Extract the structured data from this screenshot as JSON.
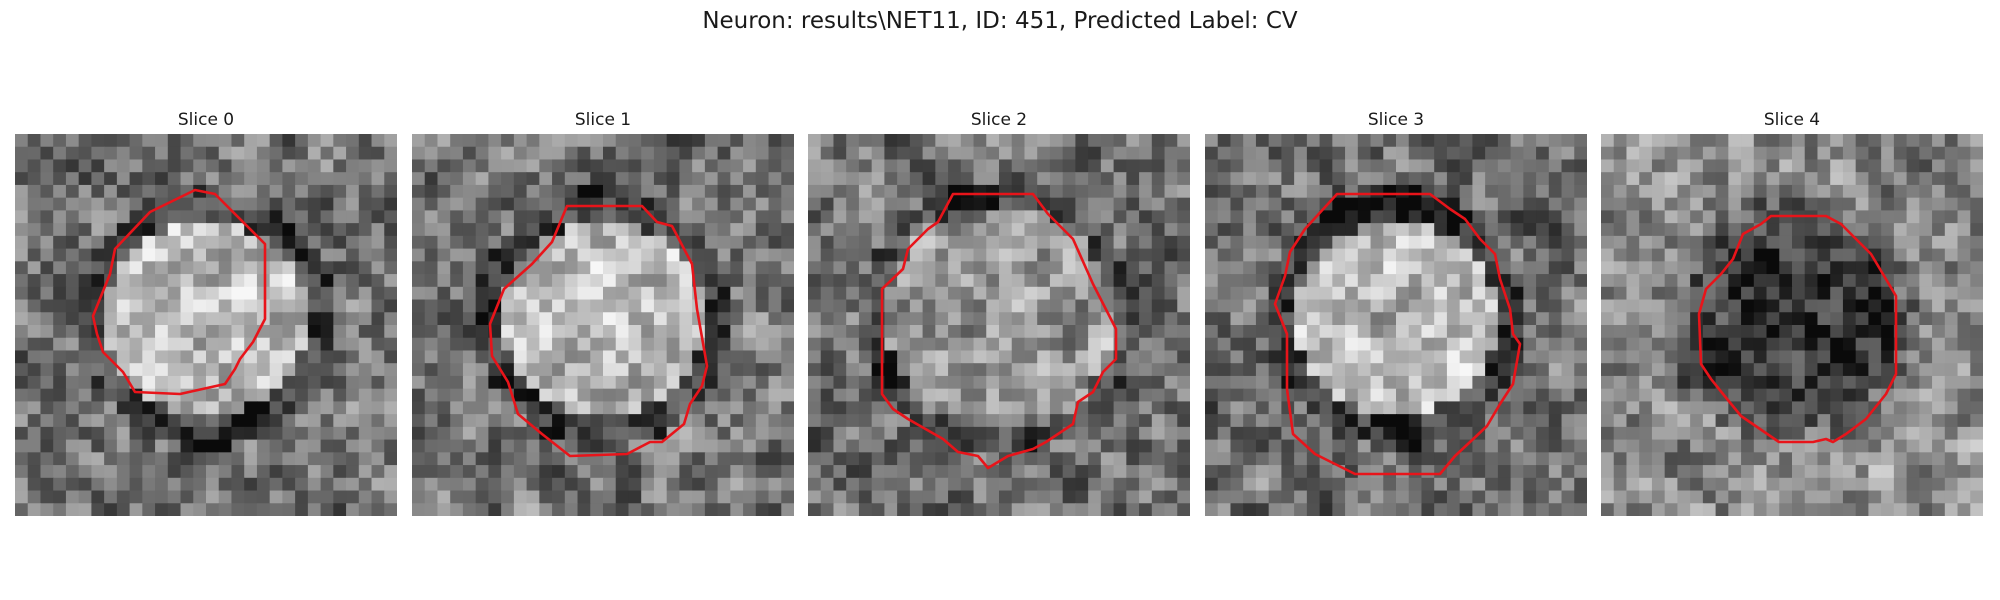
{
  "figure": {
    "title": "Neuron: results\\NET11, ID: 451, Predicted Label: CV",
    "contour_color": "#e8141a"
  },
  "slices": [
    {
      "title": "Slice 0",
      "tone": "bright-center"
    },
    {
      "title": "Slice 1",
      "tone": "bright-center"
    },
    {
      "title": "Slice 2",
      "tone": "mottled-center"
    },
    {
      "title": "Slice 3",
      "tone": "bright-center"
    },
    {
      "title": "Slice 4",
      "tone": "dark-center"
    }
  ]
}
